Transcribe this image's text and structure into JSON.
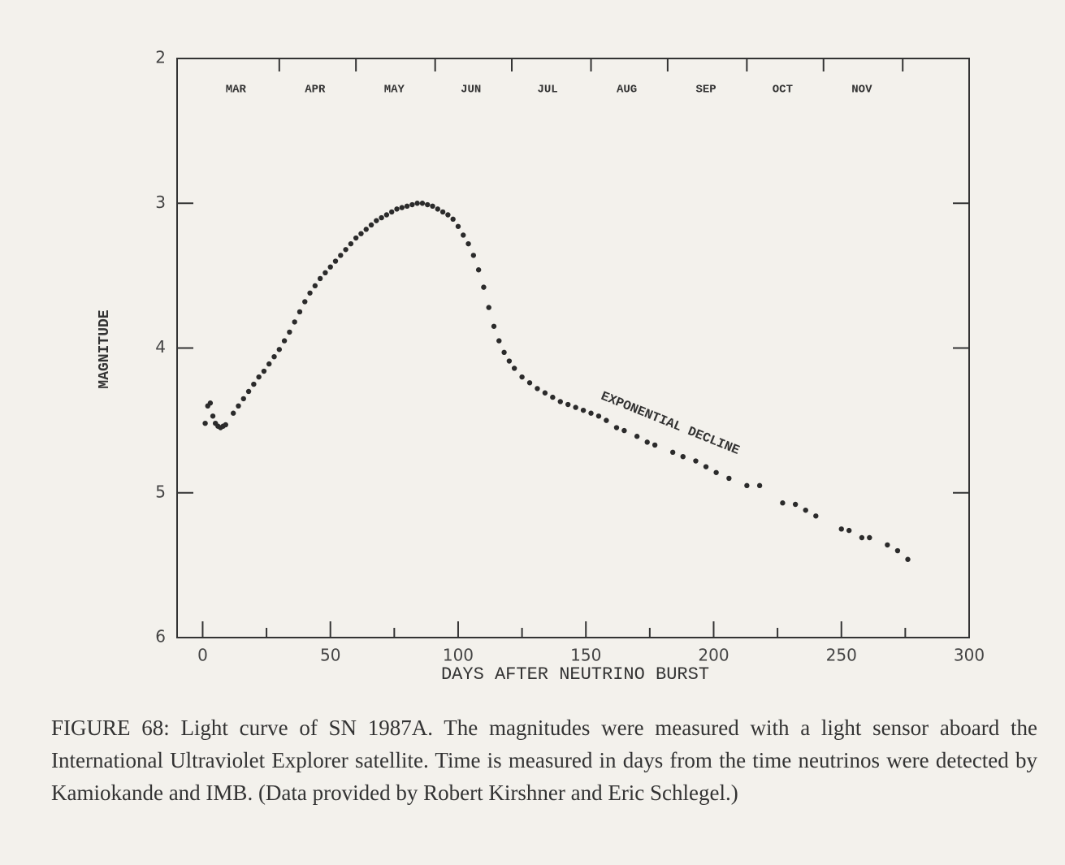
{
  "chart_data": {
    "type": "scatter",
    "xlabel": "DAYS AFTER NEUTRINO BURST",
    "ylabel": "MAGNITUDE",
    "xlim": [
      -10,
      300
    ],
    "ylim": [
      2,
      6
    ],
    "y_inverted": true,
    "xticks": [
      0,
      50,
      100,
      150,
      200,
      250,
      300
    ],
    "xminor_ticks": [
      25,
      75,
      125,
      175,
      225,
      275
    ],
    "yticks": [
      2,
      3,
      4,
      5,
      6
    ],
    "month_ticks": [
      30,
      60,
      91,
      121,
      152,
      182,
      213,
      243,
      274
    ],
    "month_labels": [
      {
        "value": 13,
        "label": "MAR"
      },
      {
        "value": 44,
        "label": "APR"
      },
      {
        "value": 75,
        "label": "MAY"
      },
      {
        "value": 105,
        "label": "JUN"
      },
      {
        "value": 135,
        "label": "JUL"
      },
      {
        "value": 166,
        "label": "AUG"
      },
      {
        "value": 197,
        "label": "SEP"
      },
      {
        "value": 227,
        "label": "OCT"
      },
      {
        "value": 258,
        "label": "NOV"
      }
    ],
    "annotations": [
      {
        "text": "EXPONENTIAL DECLINE",
        "x": 183,
        "y": 4.52
      }
    ],
    "color": "#2b2b2b",
    "x": [
      1,
      2,
      3,
      4,
      5,
      6,
      7,
      8,
      9,
      12,
      14,
      16,
      18,
      20,
      22,
      24,
      26,
      28,
      30,
      32,
      34,
      36,
      38,
      40,
      42,
      44,
      46,
      48,
      50,
      52,
      54,
      56,
      58,
      60,
      62,
      64,
      66,
      68,
      70,
      72,
      74,
      76,
      78,
      80,
      82,
      84,
      86,
      88,
      90,
      92,
      94,
      96,
      98,
      100,
      102,
      104,
      106,
      108,
      110,
      112,
      114,
      116,
      118,
      120,
      122,
      125,
      128,
      131,
      134,
      137,
      140,
      143,
      146,
      149,
      152,
      155,
      158,
      162,
      165,
      170,
      174,
      177,
      184,
      188,
      193,
      197,
      201,
      206,
      213,
      218,
      227,
      232,
      236,
      240,
      250,
      253,
      258,
      261,
      268,
      272,
      276
    ],
    "values": [
      4.52,
      4.4,
      4.38,
      4.47,
      4.52,
      4.54,
      4.55,
      4.54,
      4.53,
      4.45,
      4.4,
      4.35,
      4.3,
      4.25,
      4.2,
      4.16,
      4.11,
      4.06,
      4.01,
      3.95,
      3.89,
      3.82,
      3.75,
      3.68,
      3.62,
      3.57,
      3.52,
      3.48,
      3.44,
      3.4,
      3.36,
      3.32,
      3.28,
      3.24,
      3.21,
      3.18,
      3.15,
      3.12,
      3.1,
      3.08,
      3.06,
      3.04,
      3.03,
      3.02,
      3.01,
      3.0,
      3.0,
      3.01,
      3.02,
      3.04,
      3.06,
      3.08,
      3.11,
      3.16,
      3.22,
      3.28,
      3.36,
      3.46,
      3.58,
      3.72,
      3.85,
      3.95,
      4.03,
      4.09,
      4.14,
      4.2,
      4.24,
      4.28,
      4.31,
      4.34,
      4.37,
      4.39,
      4.41,
      4.43,
      4.45,
      4.47,
      4.5,
      4.55,
      4.57,
      4.61,
      4.65,
      4.67,
      4.72,
      4.75,
      4.78,
      4.82,
      4.86,
      4.9,
      4.95,
      4.95,
      5.07,
      5.08,
      5.12,
      5.16,
      5.25,
      5.26,
      5.31,
      5.31,
      5.36,
      5.4,
      5.46
    ]
  },
  "caption": "FIGURE 68: Light curve of SN 1987A. The magnitudes were measured with a light sensor aboard the International Ultraviolet Explorer satellite. Time is measured in days from the time neutrinos were detected by Kamiokande and IMB. (Data provided by Robert Kirshner and Eric Schlegel.)"
}
